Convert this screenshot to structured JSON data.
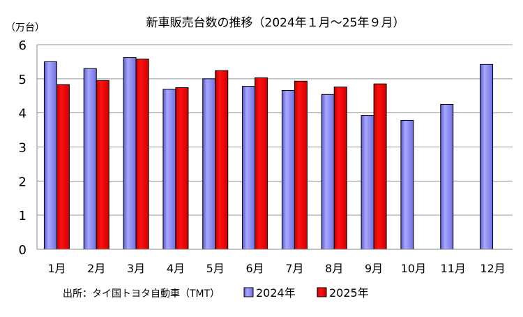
{
  "chart_data": {
    "type": "bar",
    "title": "新車販売台数の推移（2024年１月～25年９月）",
    "ylabel": "（万台）",
    "xlabel": "",
    "ylim": [
      0,
      6
    ],
    "yticks": [
      "0",
      "1",
      "2",
      "3",
      "4",
      "5",
      "6"
    ],
    "grid": true,
    "legend": "bottom",
    "categories": [
      "1月",
      "2月",
      "3月",
      "4月",
      "5月",
      "6月",
      "7月",
      "8月",
      "9月",
      "10月",
      "11月",
      "12月"
    ],
    "series": [
      {
        "name": "2024年",
        "color": "#8c8cf0",
        "values": [
          5.5,
          5.3,
          5.62,
          4.69,
          5.0,
          4.78,
          4.66,
          4.54,
          3.92,
          3.78,
          4.25,
          5.42
        ]
      },
      {
        "name": "2025年",
        "color": "#e00000",
        "values": [
          4.83,
          4.95,
          5.58,
          4.74,
          5.24,
          5.03,
          4.93,
          4.76,
          4.85,
          null,
          null,
          null
        ]
      }
    ],
    "source": "出所：タイ国トヨタ自動車（TMT）"
  }
}
